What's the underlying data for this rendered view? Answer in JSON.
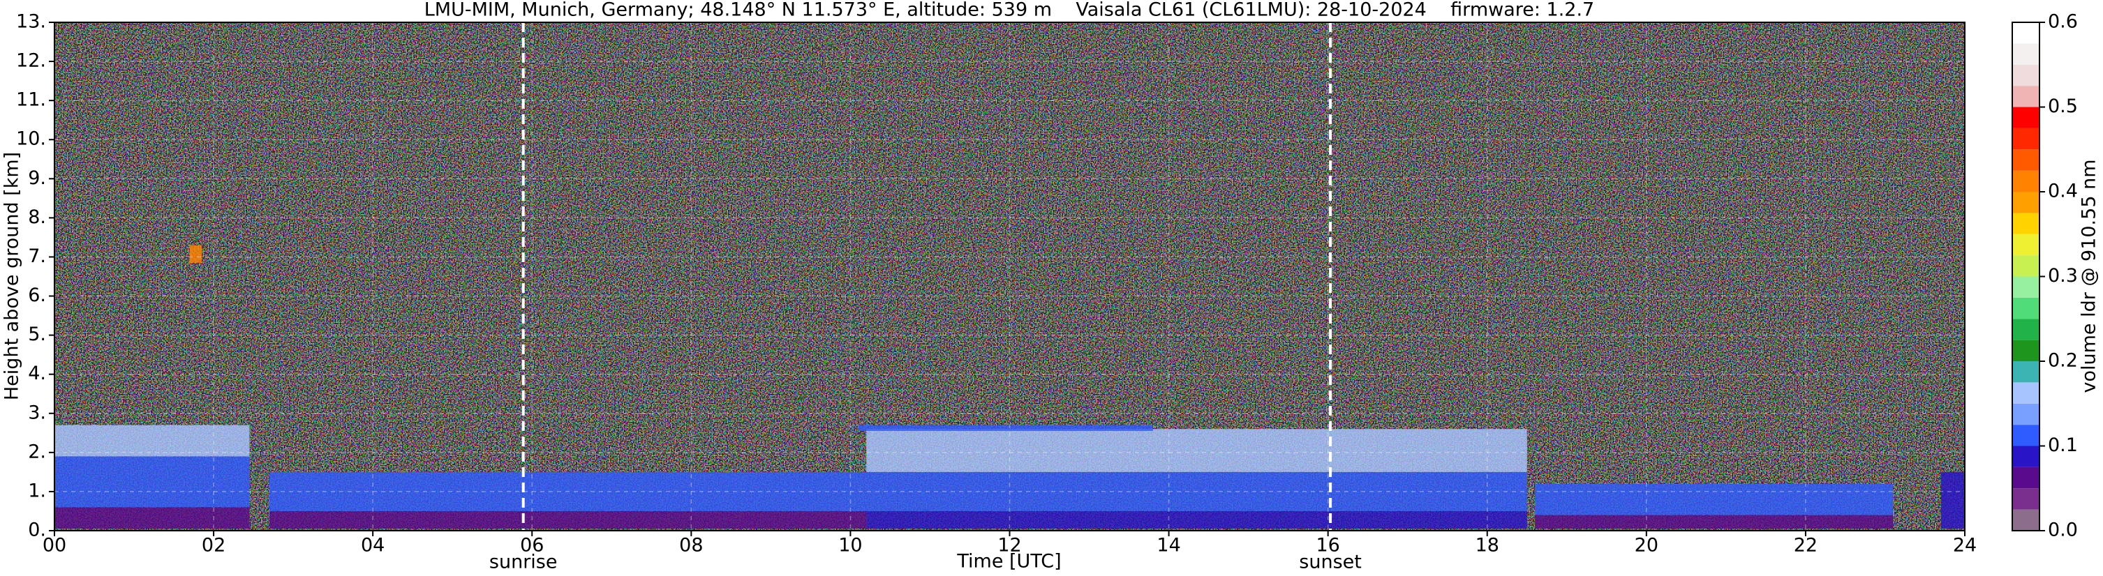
{
  "chart_data": {
    "type": "heatmap",
    "title": "LMU-MIM, Munich, Germany; 48.148° N 11.573° E, altitude: 539 m    Vaisala CL61 (CL61LMU): 28-10-2024    firmware: 1.2.7",
    "x_label": "Time [UTC]",
    "y_label": "Height above ground [km]",
    "xlim": [
      0,
      24
    ],
    "ylim": [
      0,
      13
    ],
    "xticks": [
      {
        "value": 0,
        "label": "00"
      },
      {
        "value": 2,
        "label": "02"
      },
      {
        "value": 4,
        "label": "04"
      },
      {
        "value": 6,
        "label": "06"
      },
      {
        "value": 8,
        "label": "08"
      },
      {
        "value": 10,
        "label": "10"
      },
      {
        "value": 12,
        "label": "12"
      },
      {
        "value": 14,
        "label": "14"
      },
      {
        "value": 16,
        "label": "16"
      },
      {
        "value": 18,
        "label": "18"
      },
      {
        "value": 20,
        "label": "20"
      },
      {
        "value": 22,
        "label": "22"
      },
      {
        "value": 24,
        "label": "24"
      }
    ],
    "yticks": [
      {
        "value": 0,
        "label": "0."
      },
      {
        "value": 1,
        "label": "1."
      },
      {
        "value": 2,
        "label": "2."
      },
      {
        "value": 3,
        "label": "3."
      },
      {
        "value": 4,
        "label": "4."
      },
      {
        "value": 5,
        "label": "5."
      },
      {
        "value": 6,
        "label": "6."
      },
      {
        "value": 7,
        "label": "7."
      },
      {
        "value": 8,
        "label": "8."
      },
      {
        "value": 9,
        "label": "9."
      },
      {
        "value": 10,
        "label": "10."
      },
      {
        "value": 11,
        "label": "11."
      },
      {
        "value": 12,
        "label": "12."
      },
      {
        "value": 13,
        "label": "13."
      }
    ],
    "grid": true,
    "annotations": [
      {
        "text": "sunrise",
        "x": 5.89
      },
      {
        "text": "sunset",
        "x": 16.03
      }
    ],
    "colorbar": {
      "label": "volume ldr @ 910.55 nm",
      "lim": [
        0,
        0.6
      ],
      "ticks": [
        {
          "value": 0,
          "label": "0.0"
        },
        0.1,
        0.2,
        0.3,
        0.4,
        0.5,
        0.6
      ],
      "levels": [
        0,
        0.025,
        0.05,
        0.075,
        0.1,
        0.125,
        0.15,
        0.175,
        0.2,
        0.225,
        0.25,
        0.275,
        0.3,
        0.325,
        0.35,
        0.375,
        0.4,
        0.425,
        0.45,
        0.475,
        0.5,
        0.525,
        0.55,
        0.575
      ],
      "colors": [
        "#8c6e8c",
        "#7a2f8e",
        "#5a0a8c",
        "#2a14c8",
        "#2f5cff",
        "#7aa0ff",
        "#a8c4ff",
        "#3cb4b4",
        "#1e961e",
        "#22b24a",
        "#50dc78",
        "#96f0a0",
        "#c8f050",
        "#f0f032",
        "#ffd200",
        "#ffa000",
        "#ff8200",
        "#ff5a00",
        "#ff2800",
        "#ff0000",
        "#f0b4b4",
        "#f0dcdc",
        "#f5f0f0",
        "#ffffff"
      ]
    },
    "cells": {
      "x0": [
        0,
        0,
        0,
        2.7,
        2.7,
        10.2,
        10.2,
        10.2,
        10.1,
        18.6,
        18.6,
        23.7,
        1.7
      ],
      "x1": [
        2.45,
        2.45,
        2.45,
        10.2,
        10.2,
        18.5,
        18.5,
        18.5,
        13.8,
        23.1,
        23.1,
        24,
        1.85
      ],
      "y0": [
        0.05,
        0.6,
        1.9,
        0.05,
        0.5,
        0.05,
        0.5,
        1.5,
        2.55,
        0.05,
        0.4,
        0.05,
        6.85
      ],
      "y1": [
        0.6,
        1.9,
        2.7,
        0.5,
        1.5,
        0.5,
        1.5,
        2.6,
        2.7,
        0.4,
        1.2,
        1.5,
        7.3
      ],
      "values": [
        0.05,
        0.1,
        0.15,
        0.06,
        0.1,
        0.075,
        0.1,
        0.15,
        0.1,
        0.06,
        0.1,
        0.09,
        0.4
      ]
    }
  }
}
